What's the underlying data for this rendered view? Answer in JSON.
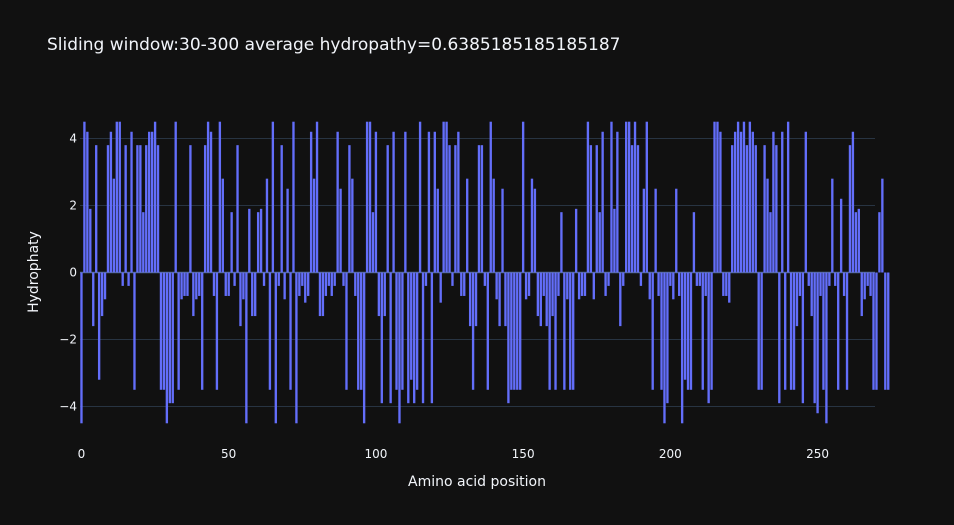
{
  "chart_data": {
    "type": "bar",
    "title": "Sliding window:30-300 average hydropathy=0.6385185185185187",
    "xlabel": "Amino acid position",
    "ylabel": "Hydrophaty",
    "xlim": [
      -0.5,
      269.5
    ],
    "ylim": [
      -4.7,
      4.7
    ],
    "xticks": [
      0,
      50,
      100,
      150,
      200,
      250
    ],
    "yticks": [
      -4,
      -2,
      0,
      2,
      4
    ],
    "grid": true,
    "legend": "none",
    "bar_color": "#636efa",
    "x_start": 0,
    "values": [
      -4.5,
      4.5,
      4.2,
      1.9,
      -1.6,
      3.8,
      -3.2,
      -1.3,
      -0.8,
      3.8,
      4.2,
      2.8,
      4.5,
      4.5,
      -0.4,
      3.8,
      -0.4,
      4.2,
      -3.5,
      3.8,
      3.8,
      1.8,
      3.8,
      4.2,
      4.2,
      4.5,
      3.8,
      -3.5,
      -3.5,
      -4.5,
      -3.9,
      -3.9,
      4.5,
      -3.5,
      -0.8,
      -0.7,
      -0.7,
      3.8,
      -1.3,
      -0.8,
      -0.7,
      -3.5,
      3.8,
      4.5,
      4.2,
      -0.7,
      -3.5,
      4.5,
      2.8,
      -0.7,
      -0.7,
      1.8,
      -0.4,
      3.8,
      -1.6,
      -0.8,
      -4.5,
      1.9,
      -1.3,
      -1.3,
      1.8,
      1.9,
      -0.4,
      2.8,
      -3.5,
      4.5,
      -4.5,
      -0.4,
      3.8,
      -0.8,
      2.5,
      -3.5,
      4.5,
      -4.5,
      -0.7,
      -0.4,
      -0.9,
      -0.7,
      4.2,
      2.8,
      4.5,
      -1.3,
      -1.3,
      -0.7,
      -0.4,
      -0.7,
      -0.4,
      4.2,
      2.5,
      -0.4,
      -3.5,
      3.8,
      2.8,
      -0.7,
      -3.5,
      -3.5,
      -4.5,
      4.5,
      4.5,
      1.8,
      4.2,
      -1.3,
      -3.9,
      -1.3,
      3.8,
      -3.9,
      4.2,
      -3.5,
      -4.5,
      -3.5,
      4.2,
      -3.9,
      -3.2,
      -3.9,
      -3.5,
      4.5,
      -3.9,
      -0.4,
      4.2,
      -3.9,
      4.2,
      2.5,
      -0.9,
      4.5,
      4.5,
      3.8,
      -0.4,
      3.8,
      4.2,
      -0.7,
      -0.7,
      2.8,
      -1.6,
      -3.5,
      -1.6,
      3.8,
      3.8,
      -0.4,
      -3.5,
      4.5,
      2.8,
      -0.8,
      -1.6,
      2.5,
      -1.6,
      -3.9,
      -3.5,
      -3.5,
      -3.5,
      -3.5,
      4.5,
      -0.8,
      -0.7,
      2.8,
      2.5,
      -1.3,
      -1.6,
      -0.7,
      -1.6,
      -3.5,
      -1.3,
      -3.5,
      -0.7,
      1.8,
      -3.5,
      -0.8,
      -3.5,
      -3.5,
      1.9,
      -0.8,
      -0.7,
      -0.7,
      4.5,
      3.8,
      -0.8,
      3.8,
      1.8,
      4.2,
      -0.7,
      -0.4,
      4.5,
      1.9,
      4.2,
      -1.6,
      -0.4,
      4.5,
      4.5,
      3.8,
      4.5,
      3.8,
      -0.4,
      2.5,
      4.5,
      -0.8,
      -3.5,
      2.5,
      -0.7,
      -3.5,
      -4.5,
      -3.9,
      -0.4,
      -0.8,
      2.5,
      -0.7,
      -4.5,
      -3.2,
      -3.5,
      -3.5,
      1.8,
      -0.4,
      -0.4,
      -3.5,
      -0.7,
      -3.9,
      -3.5,
      4.5,
      4.5,
      4.2,
      -0.7,
      -0.7,
      -0.9,
      3.8,
      4.2,
      4.5,
      4.2,
      4.5,
      3.8,
      4.5,
      4.2,
      3.8,
      -3.5,
      -3.5,
      3.8,
      2.8,
      1.8,
      4.2,
      3.8,
      -3.9,
      4.2,
      -3.5,
      4.5,
      -3.5,
      -3.5,
      -1.6,
      -0.7,
      -3.9,
      4.2,
      -0.4,
      -1.3,
      -3.9,
      -4.2,
      -0.7,
      -3.5,
      -4.5,
      -0.4,
      2.8,
      -0.4,
      -3.5,
      2.2,
      -0.7,
      -3.5,
      3.8,
      4.2,
      1.8,
      1.9,
      -1.3,
      -0.8,
      -0.4,
      -0.7,
      -3.5,
      -3.5,
      1.8,
      2.8,
      -3.5,
      -3.5
    ]
  }
}
